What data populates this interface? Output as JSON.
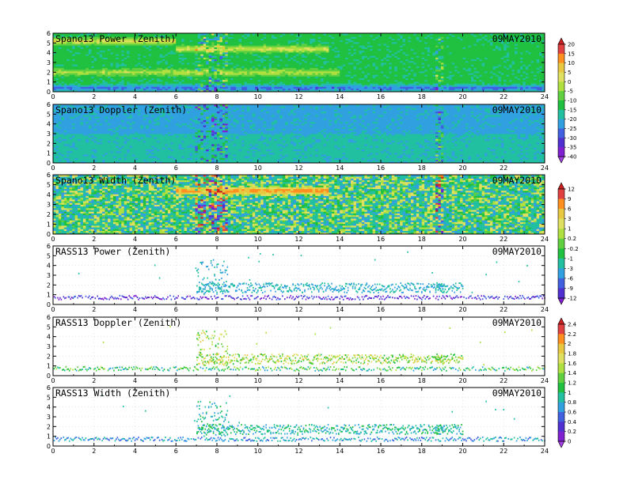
{
  "figure": {
    "date": "09MAY2010"
  },
  "chart_data": [
    {
      "type": "heatmap",
      "title": "Spano13 Power (Zenith)",
      "date": "09MAY2010",
      "xlim": [
        0,
        24
      ],
      "ylim": [
        0,
        6
      ],
      "xticks": [
        "0",
        "2",
        "4",
        "6",
        "8",
        "10",
        "12",
        "14",
        "16",
        "18",
        "20",
        "22",
        "24"
      ],
      "yticks": [
        "0",
        "1",
        "2",
        "3",
        "4",
        "5",
        "6"
      ],
      "scale": "power",
      "features": {
        "base_value": -13,
        "bands": [
          {
            "y": 0.4,
            "value": -30,
            "x_range": [
              0,
              24
            ]
          },
          {
            "y": 2.0,
            "value": 0,
            "x_range": [
              0,
              14
            ]
          },
          {
            "y": 4.4,
            "value": 4,
            "x_range": [
              6,
              13.5
            ]
          },
          {
            "y": 5.2,
            "value": 6,
            "x_range": [
              0,
              6
            ]
          }
        ],
        "disturbed_periods": [
          [
            7,
            8.5
          ],
          [
            18.7,
            19.1
          ]
        ]
      }
    },
    {
      "type": "heatmap",
      "title": "Spano13 Doppler (Zenith)",
      "date": "09MAY2010",
      "xlim": [
        0,
        24
      ],
      "ylim": [
        0,
        6
      ],
      "xticks": [
        "0",
        "2",
        "4",
        "6",
        "8",
        "10",
        "12",
        "14",
        "16",
        "18",
        "20",
        "22",
        "24"
      ],
      "yticks": [
        "0",
        "1",
        "2",
        "3",
        "4",
        "5",
        "6"
      ],
      "scale": "power",
      "features": {
        "base_value": -18,
        "upper_layer_value": -22,
        "disturbed_periods": [
          [
            7,
            8.5
          ],
          [
            18.7,
            19.1
          ]
        ]
      }
    },
    {
      "type": "heatmap",
      "title": "Spano13 Width (Zenith)",
      "date": "09MAY2010",
      "xlim": [
        0,
        24
      ],
      "ylim": [
        0,
        6
      ],
      "xticks": [
        "0",
        "2",
        "4",
        "6",
        "8",
        "10",
        "12",
        "14",
        "16",
        "18",
        "20",
        "22",
        "24"
      ],
      "yticks": [
        "0",
        "1",
        "2",
        "3",
        "4",
        "5",
        "6"
      ],
      "scale": "width_a",
      "features": {
        "base_value": -1,
        "band": {
          "y": 4.4,
          "value": 9,
          "x_range": [
            6,
            13.5
          ]
        },
        "disturbed_periods": [
          [
            7,
            8.5
          ],
          [
            18.7,
            19.1
          ]
        ]
      }
    },
    {
      "type": "scatter",
      "title": "RASS13 Power (Zenith)",
      "date": "09MAY2010",
      "xlim": [
        0,
        24
      ],
      "ylim": [
        0,
        6
      ],
      "xticks": [
        "0",
        "2",
        "4",
        "6",
        "8",
        "10",
        "12",
        "14",
        "16",
        "18",
        "20",
        "22",
        "24"
      ],
      "yticks": [
        "0",
        "1",
        "2",
        "3",
        "4",
        "5",
        "6"
      ],
      "scale": "width_a",
      "features": {
        "low_layer": [
          0.5,
          0.9
        ],
        "low_value": -10,
        "active_period": [
          7,
          20
        ],
        "upper_height_range": [
          1.2,
          2.2
        ],
        "upper_value": -3
      }
    },
    {
      "type": "scatter",
      "title": "RASS13 Doppler (Zenith)",
      "date": "09MAY2010",
      "xlim": [
        0,
        24
      ],
      "ylim": [
        0,
        6
      ],
      "xticks": [
        "0",
        "2",
        "4",
        "6",
        "8",
        "10",
        "12",
        "14",
        "16",
        "18",
        "20",
        "22",
        "24"
      ],
      "yticks": [
        "0",
        "1",
        "2",
        "3",
        "4",
        "5",
        "6"
      ],
      "scale": "width_b",
      "features": {
        "low_layer": [
          0.5,
          0.9
        ],
        "low_value": 1.1,
        "active_period": [
          7,
          20
        ],
        "upper_height_range": [
          1.2,
          2.2
        ],
        "upper_value": 1.5
      }
    },
    {
      "type": "scatter",
      "title": "RASS13 Width (Zenith)",
      "date": "09MAY2010",
      "xlim": [
        0,
        24
      ],
      "ylim": [
        0,
        6
      ],
      "xticks": [
        "0",
        "2",
        "4",
        "6",
        "8",
        "10",
        "12",
        "14",
        "16",
        "18",
        "20",
        "22",
        "24"
      ],
      "yticks": [
        "0",
        "1",
        "2",
        "3",
        "4",
        "5",
        "6"
      ],
      "scale": "width_b",
      "features": {
        "low_layer": [
          0.5,
          0.9
        ],
        "low_value": 0.7,
        "active_period": [
          7,
          20
        ],
        "upper_height_range": [
          1.2,
          2.2
        ],
        "upper_value": 0.9
      }
    }
  ],
  "colorbars": [
    {
      "id": "power",
      "labels": [
        "20",
        "15",
        "10",
        "5",
        "0",
        "-5",
        "-10",
        "-15",
        "-20",
        "-25",
        "-30",
        "-35",
        "-40"
      ],
      "colors": [
        "#cc2020",
        "#e04040",
        "#ff9020",
        "#e8c840",
        "#e0e060",
        "#b0e040",
        "#60d040",
        "#20c040",
        "#20c0a0",
        "#30a0e0",
        "#4060e0",
        "#5030d0",
        "#8020d0",
        "#a040e0"
      ]
    },
    {
      "id": "width_a",
      "labels": [
        "12",
        "9",
        "6",
        "3",
        "1",
        "0.2",
        "-0.2",
        "-1",
        "-3",
        "-6",
        "-9",
        "-12"
      ],
      "colors": [
        "#cc2020",
        "#e04040",
        "#ff9020",
        "#e8c840",
        "#e0e060",
        "#b0e040",
        "#60d040",
        "#20c040",
        "#20c0a0",
        "#30a0e0",
        "#4060e0",
        "#5030d0",
        "#8020d0"
      ]
    },
    {
      "id": "width_b",
      "labels": [
        "2.4",
        "2.2",
        "2",
        "1.8",
        "1.6",
        "1.4",
        "1.2",
        "1",
        "0.8",
        "0.6",
        "0.4",
        "0.2",
        "0"
      ],
      "colors": [
        "#cc2020",
        "#e04040",
        "#ff9020",
        "#e8c840",
        "#e0e060",
        "#b0e040",
        "#60d040",
        "#20c040",
        "#20c0a0",
        "#30a0e0",
        "#4060e0",
        "#5030d0",
        "#8020d0",
        "#a040e0"
      ]
    }
  ]
}
